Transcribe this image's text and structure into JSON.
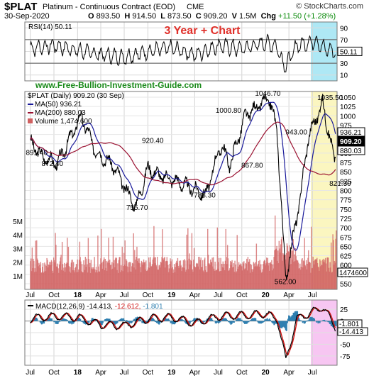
{
  "header": {
    "symbol": "$PLAT",
    "description": "Platinum - Continuous Contract (EOD)",
    "exchange": "CME",
    "credit": "© StockCharts.com",
    "date": "30-Sep-2020",
    "quote": {
      "open_label": "O",
      "open": "893.50",
      "high_label": "H",
      "high": "914.50",
      "low_label": "L",
      "low": "873.50",
      "close_label": "C",
      "close": "909.20",
      "volume_label": "V",
      "volume": "1.5M",
      "change_label": "Chg",
      "change": "+11.50 (+1.28%)"
    }
  },
  "overlay": {
    "title": "3 Year + Chart",
    "website": "www.Free-Bullion-Investment-Guide.com"
  },
  "colors": {
    "price": "#000000",
    "ma50": "#1a1a9a",
    "ma200": "#9a1030",
    "volume": "#d06060",
    "rsi_band": "#aee8f5",
    "price_band": "#fbf6c0",
    "macd_band": "#f7c6f2",
    "title": "#e0302a",
    "website": "#1a8a1a",
    "macd_line": "#000000",
    "signal_line": "#d01010",
    "histogram": "#2f7fb0"
  },
  "chart_data": [
    {
      "type": "line",
      "panel": "RSI",
      "legend": "RSI(14) 50.11",
      "last_value": "50.11",
      "ylim": [
        0,
        100
      ],
      "reference_lines": [
        30,
        70
      ],
      "y_ticks": [
        "90",
        "70",
        "50",
        "30",
        "10"
      ],
      "x": [
        "2017-07-01",
        "2017-10-01",
        "2018-01-01",
        "2018-04-01",
        "2018-07-01",
        "2018-10-01",
        "2019-01-01",
        "2019-04-01",
        "2019-07-01",
        "2019-10-01",
        "2020-01-01",
        "2020-02-15",
        "2020-03-16",
        "2020-05-01",
        "2020-07-15",
        "2020-08-15",
        "2020-09-30"
      ],
      "values": [
        55,
        60,
        52,
        45,
        40,
        50,
        56,
        44,
        60,
        54,
        65,
        58,
        22,
        60,
        68,
        55,
        50.11
      ]
    },
    {
      "type": "line",
      "panel": "Price",
      "series": [
        {
          "name": "$PLAT (Daily) 909.20 (30 Sep)",
          "values": [
            930,
            891.4,
            872.4,
            1000,
            900,
            870,
            755.7,
            860,
            840,
            830,
            788.3,
            900,
            920.4,
            867.8,
            1000.8,
            1046.7,
            960,
            562,
            780,
            943,
            1035.5,
            880,
            909.2
          ]
        },
        {
          "name": "MA(50) 936.21",
          "last_value": "936.21"
        },
        {
          "name": "MA(200) 880.03",
          "last_value": "880.03"
        }
      ],
      "x": [
        "2017-07-01",
        "2017-08-15",
        "2017-10-15",
        "2018-01-15",
        "2018-03-15",
        "2018-05-15",
        "2018-08-15",
        "2018-10-01",
        "2018-11-15",
        "2019-01-01",
        "2019-05-15",
        "2019-06-30",
        "2019-07-15",
        "2019-08-15",
        "2019-10-15",
        "2020-01-15",
        "2020-02-15",
        "2020-03-19",
        "2020-05-15",
        "2020-06-15",
        "2020-08-10",
        "2020-09-24",
        "2020-09-30"
      ],
      "annotations": [
        "891.40",
        "872.40",
        "755.70",
        "920.40",
        "788.30",
        "1000.80",
        "867.80",
        "1046.70",
        "943.00",
        "1035.50",
        "562.00",
        "821.30"
      ],
      "y_ticks": [
        "1050",
        "1025",
        "1000",
        "975",
        "950",
        "925",
        "900",
        "875",
        "850",
        "825",
        "800",
        "775",
        "750",
        "725",
        "700",
        "675",
        "650",
        "625",
        "600",
        "575",
        "550"
      ],
      "ylim": [
        550,
        1050
      ],
      "last_labels": [
        "936.21",
        "909.20",
        "880.03"
      ]
    },
    {
      "type": "bar",
      "panel": "Volume",
      "legend": "Volume 1,474,600",
      "last_value": "1474600",
      "y_ticks": [
        "5M",
        "4M",
        "3M",
        "2M",
        "1M"
      ],
      "ylim": [
        0,
        5000000
      ]
    },
    {
      "type": "line",
      "panel": "MACD",
      "legend": "MACD(12,26,9) -14.413, -12.612, -1.801",
      "macd": "-14.413",
      "signal": "-12.612",
      "histogram": "-1.801",
      "y_ticks": [
        "25",
        "0",
        "-25",
        "-50",
        "-75"
      ],
      "ylim": [
        -95,
        45
      ],
      "last_labels": [
        "-1.801",
        "-14.413"
      ],
      "x": [
        "2017-07-01",
        "2017-10-01",
        "2018-01-01",
        "2018-04-01",
        "2018-07-01",
        "2018-10-01",
        "2019-01-01",
        "2019-04-01",
        "2019-07-01",
        "2019-10-01",
        "2020-01-01",
        "2020-02-15",
        "2020-03-20",
        "2020-05-01",
        "2020-06-15",
        "2020-08-10",
        "2020-09-30"
      ],
      "values": [
        5,
        10,
        8,
        -8,
        -10,
        5,
        8,
        -5,
        10,
        12,
        15,
        5,
        -85,
        5,
        15,
        30,
        -14.413
      ]
    }
  ],
  "x_axis": {
    "labels": [
      "Jul",
      "Oct",
      "18",
      "Apr",
      "Jul",
      "Oct",
      "19",
      "Apr",
      "Jul",
      "Oct",
      "20",
      "Apr",
      "Jul"
    ]
  }
}
